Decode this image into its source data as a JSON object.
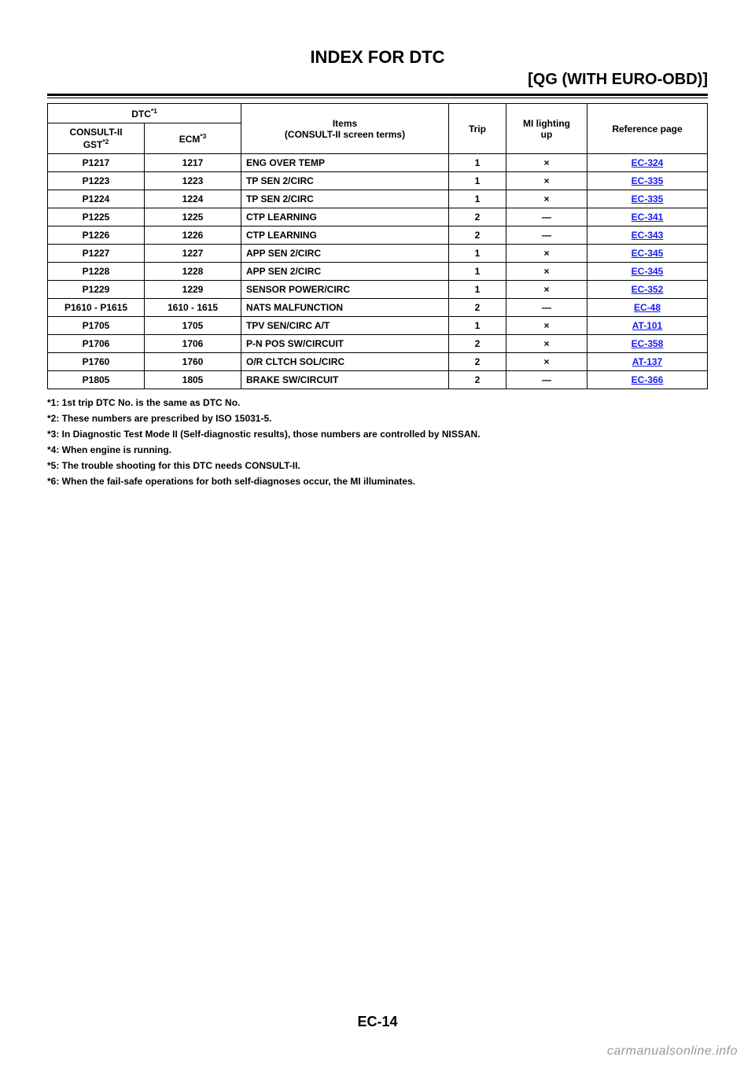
{
  "header": {
    "title": "INDEX FOR DTC",
    "subtitle": "[QG (WITH EURO-OBD)]"
  },
  "table": {
    "columns": {
      "dtc_group": "DTC*1",
      "consult_gst": "CONSULT-II\nGST*2",
      "ecm": "ECM*3",
      "items": "Items\n(CONSULT-II screen terms)",
      "trip": "Trip",
      "mi": "MI lighting up",
      "ref": "Reference page"
    },
    "rows": [
      {
        "code": "P1217",
        "ecm": "1217",
        "items": "ENG OVER TEMP",
        "trip": "1",
        "mi": "×",
        "ref": "EC-324"
      },
      {
        "code": "P1223",
        "ecm": "1223",
        "items": "TP SEN 2/CIRC",
        "trip": "1",
        "mi": "×",
        "ref": "EC-335"
      },
      {
        "code": "P1224",
        "ecm": "1224",
        "items": "TP SEN 2/CIRC",
        "trip": "1",
        "mi": "×",
        "ref": "EC-335"
      },
      {
        "code": "P1225",
        "ecm": "1225",
        "items": "CTP LEARNING",
        "trip": "2",
        "mi": "—",
        "ref": "EC-341"
      },
      {
        "code": "P1226",
        "ecm": "1226",
        "items": "CTP LEARNING",
        "trip": "2",
        "mi": "—",
        "ref": "EC-343"
      },
      {
        "code": "P1227",
        "ecm": "1227",
        "items": "APP SEN 2/CIRC",
        "trip": "1",
        "mi": "×",
        "ref": "EC-345"
      },
      {
        "code": "P1228",
        "ecm": "1228",
        "items": "APP SEN 2/CIRC",
        "trip": "1",
        "mi": "×",
        "ref": "EC-345"
      },
      {
        "code": "P1229",
        "ecm": "1229",
        "items": "SENSOR POWER/CIRC",
        "trip": "1",
        "mi": "×",
        "ref": "EC-352"
      },
      {
        "code": "P1610 - P1615",
        "ecm": "1610 - 1615",
        "items": "NATS MALFUNCTION",
        "trip": "2",
        "mi": "—",
        "ref": "EC-48"
      },
      {
        "code": "P1705",
        "ecm": "1705",
        "items": "TPV SEN/CIRC A/T",
        "trip": "1",
        "mi": "×",
        "ref": "AT-101"
      },
      {
        "code": "P1706",
        "ecm": "1706",
        "items": "P-N POS SW/CIRCUIT",
        "trip": "2",
        "mi": "×",
        "ref": "EC-358"
      },
      {
        "code": "P1760",
        "ecm": "1760",
        "items": "O/R CLTCH SOL/CIRC",
        "trip": "2",
        "mi": "×",
        "ref": "AT-137"
      },
      {
        "code": "P1805",
        "ecm": "1805",
        "items": "BRAKE SW/CIRCUIT",
        "trip": "2",
        "mi": "—",
        "ref": "EC-366"
      }
    ]
  },
  "notes": [
    "*1: 1st trip DTC No. is the same as DTC No.",
    "*2: These numbers are prescribed by ISO 15031-5.",
    "*3: In Diagnostic Test Mode II (Self-diagnostic results), those numbers are controlled by NISSAN.",
    "*4: When engine is running.",
    "*5: The trouble shooting for this DTC needs CONSULT-II.",
    "*6: When the fail-safe operations for both self-diagnoses occur, the MI illuminates."
  ],
  "footer": {
    "page": "EC-14",
    "watermark": "carmanualsonline.info"
  }
}
